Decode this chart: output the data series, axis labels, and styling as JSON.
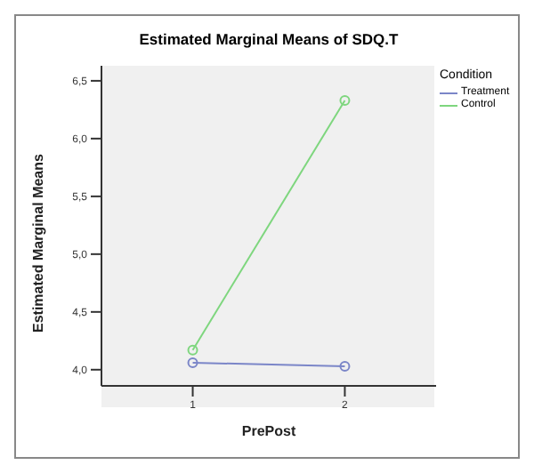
{
  "chart_data": {
    "type": "line",
    "title": "Estimated Marginal Means of SDQ.T",
    "xlabel": "PrePost",
    "ylabel": "Estimated Marginal Means",
    "legend_title": "Condition",
    "categories": [
      "1",
      "2"
    ],
    "series": [
      {
        "name": "Treatment",
        "color": "#7b86c8",
        "values": [
          4.06,
          4.03
        ]
      },
      {
        "name": "Control",
        "color": "#7ed67e",
        "values": [
          4.17,
          6.33
        ]
      }
    ],
    "ylim": [
      3.86,
      6.63
    ],
    "yticks": [
      {
        "value": 4,
        "label": "4,0"
      },
      {
        "value": 4.5,
        "label": "4,5"
      },
      {
        "value": 5,
        "label": "5,0"
      },
      {
        "value": 5.5,
        "label": "5,5"
      },
      {
        "value": 6,
        "label": "6,0"
      },
      {
        "value": 6.5,
        "label": "6,5"
      }
    ],
    "marker": "circle",
    "legend": "top right",
    "grid": false
  }
}
